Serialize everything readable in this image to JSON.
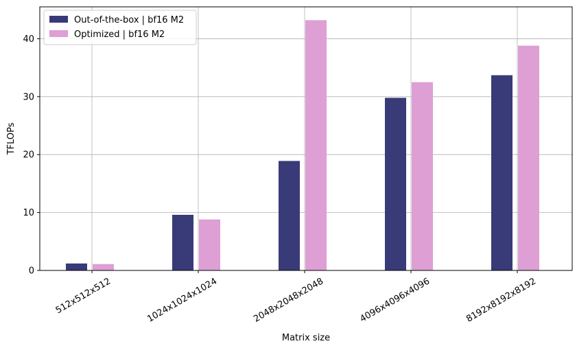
{
  "chart_data": {
    "type": "bar",
    "title": "",
    "xlabel": "Matrix size",
    "ylabel": "TFLOPs",
    "categories": [
      "512x512x512",
      "1024x1024x1024",
      "2048x2048x2048",
      "4096x4096x4096",
      "8192x8192x8192"
    ],
    "series": [
      {
        "name": "Out-of-the-box | bf16 M2",
        "color": "#393a78",
        "values": [
          1.2,
          9.6,
          18.9,
          29.8,
          33.7
        ]
      },
      {
        "name": "Optimized | bf16 M2",
        "color": "#dd9fd4",
        "values": [
          1.1,
          8.8,
          43.2,
          32.5,
          38.8
        ]
      }
    ],
    "ylim": [
      0,
      45.5
    ],
    "yticks": [
      0,
      10,
      20,
      30,
      40
    ],
    "grid": true,
    "legend_position": "top-left"
  }
}
